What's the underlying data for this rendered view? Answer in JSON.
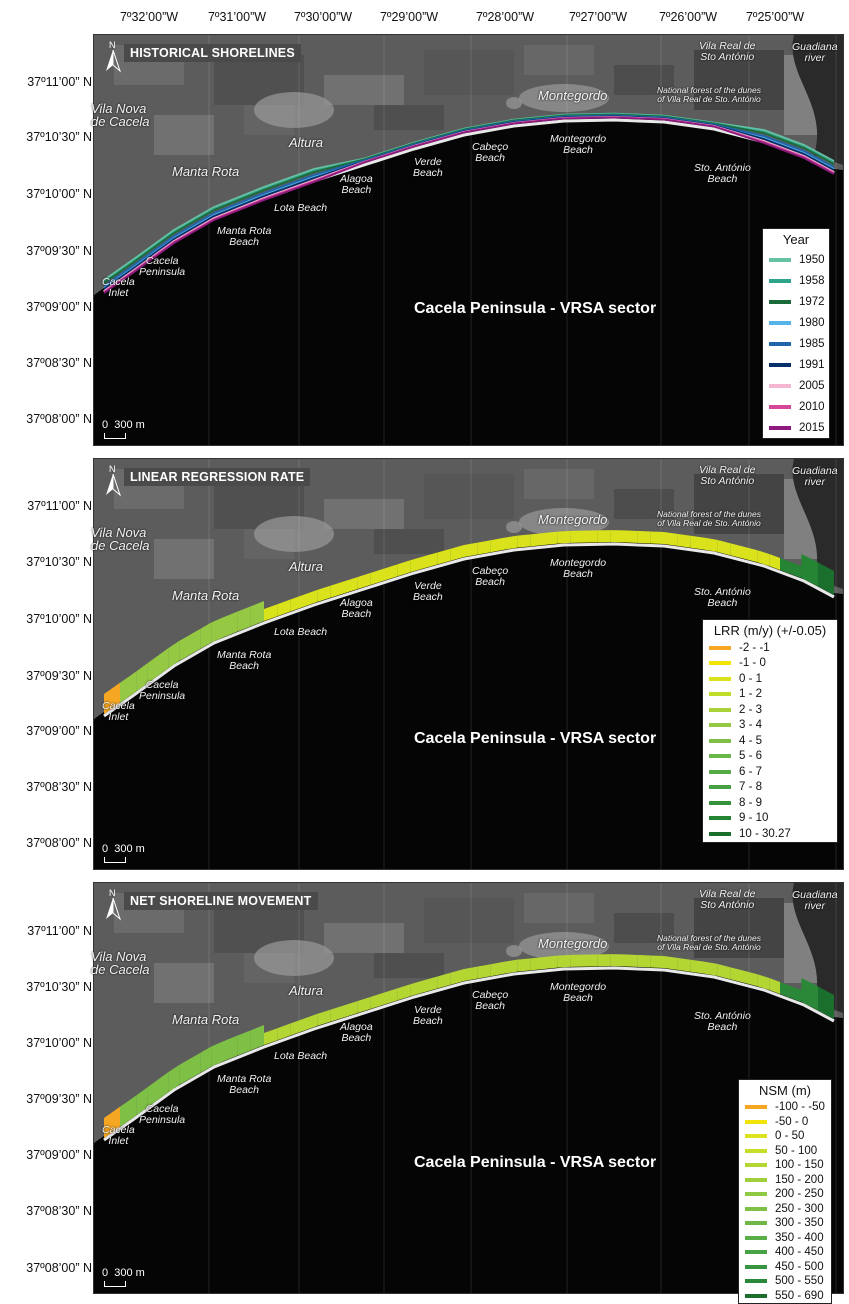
{
  "longitudes": [
    "7º32’00”W",
    "7º31’00”W",
    "7º30’00”W",
    "7º29’00”W",
    "7º28’00”W",
    "7º27’00”W",
    "7º26’00”W",
    "7º25’00”W"
  ],
  "latitudes": [
    "37º11’00” N",
    "37º10’30” N",
    "37º10’00” N",
    "37º09’30” N",
    "37º09’00” N",
    "37º08’30” N",
    "37º08’00” N"
  ],
  "places": {
    "vila_real": "Vila Real de\nSto António",
    "guadiana": "Guadiana\nriver",
    "national_forest": "National forest of the dunes\nof Vila Real de Sto. António",
    "montegordo": "Montegordo",
    "vila_nova": "Vila Nova\nde Cacela",
    "altura": "Altura",
    "manta_rota": "Manta Rota",
    "cabeco_beach": "Cabeço\nBeach",
    "montegordo_beach": "Montegordo\nBeach",
    "verde_beach": "Verde\nBeach",
    "alagoa_beach": "Alagoa\nBeach",
    "lota_beach": "Lota Beach",
    "manta_rota_beach": "Manta Rota\nBeach",
    "sto_antonio_beach": "Sto. António\nBeach",
    "cacela_peninsula": "Cacela\nPeninsula",
    "cacela_inlet": "Cacela\nInlet"
  },
  "north_label": "N",
  "sector_label": "Cacela Peninsula - VRSA sector",
  "scale_label": "0  300 m",
  "panels": [
    {
      "title": "HISTORICAL SHORELINES",
      "legend_title": "Year",
      "legend": [
        {
          "label": "1950",
          "color": "#66c2a5"
        },
        {
          "label": "1958",
          "color": "#2ea58a"
        },
        {
          "label": "1972",
          "color": "#1b6b3a"
        },
        {
          "label": "1980",
          "color": "#56b4e9"
        },
        {
          "label": "1985",
          "color": "#2166ac"
        },
        {
          "label": "1991",
          "color": "#08306b"
        },
        {
          "label": "2005",
          "color": "#f4b6d2"
        },
        {
          "label": "2010",
          "color": "#d6479a"
        },
        {
          "label": "2015",
          "color": "#8e1a7e"
        }
      ]
    },
    {
      "title": "LINEAR REGRESSION RATE",
      "legend_title": "LRR (m/y) (+/-0.05)",
      "legend": [
        {
          "label": "-2 - -1",
          "color": "#f5a623"
        },
        {
          "label": "-1 - 0",
          "color": "#f2e205"
        },
        {
          "label": "0 - 1",
          "color": "#d9e21a"
        },
        {
          "label": "1 - 2",
          "color": "#c2dc2a"
        },
        {
          "label": "2 - 3",
          "color": "#a9d23a"
        },
        {
          "label": "3 - 4",
          "color": "#95c944"
        },
        {
          "label": "4 - 5",
          "color": "#7fbf45"
        },
        {
          "label": "5 - 6",
          "color": "#6ab647"
        },
        {
          "label": "6 - 7",
          "color": "#55ab46"
        },
        {
          "label": "7 - 8",
          "color": "#44a043"
        },
        {
          "label": "8 - 9",
          "color": "#34923c"
        },
        {
          "label": "9 - 10",
          "color": "#268535"
        },
        {
          "label": "10 - 30.27",
          "color": "#1a6f2c"
        }
      ]
    },
    {
      "title": "NET SHORELINE MOVEMENT",
      "legend_title": "NSM (m)",
      "legend": [
        {
          "label": "-100 - -50",
          "color": "#f5a623"
        },
        {
          "label": "-50 - 0",
          "color": "#f2e205"
        },
        {
          "label": "0 - 50",
          "color": "#dde31a"
        },
        {
          "label": "50 - 100",
          "color": "#c8de26"
        },
        {
          "label": "100 - 150",
          "color": "#b3d632"
        },
        {
          "label": "150 - 200",
          "color": "#a1cf3b"
        },
        {
          "label": "200 - 250",
          "color": "#8fc842"
        },
        {
          "label": "250 - 300",
          "color": "#7ec045"
        },
        {
          "label": "300 - 350",
          "color": "#6cb747"
        },
        {
          "label": "350 - 400",
          "color": "#5aae47"
        },
        {
          "label": "400 - 450",
          "color": "#49a345"
        },
        {
          "label": "450 - 500",
          "color": "#389640"
        },
        {
          "label": "500 - 550",
          "color": "#2a8838"
        },
        {
          "label": "550 - 690",
          "color": "#1b6f2c"
        }
      ]
    }
  ]
}
